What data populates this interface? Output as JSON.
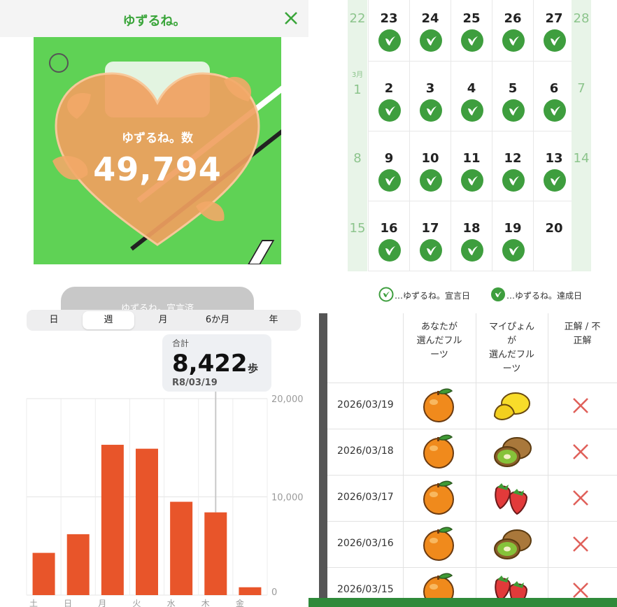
{
  "app": {
    "title": "ゆずるね。",
    "counter_label": "ゆずるね。数",
    "counter_value": "49,794",
    "declare_button": "ゆずるね。宣言済",
    "colors": {
      "brand_green": "#3aa53a",
      "heart": "#f0a060",
      "scene_green": "#5fd255"
    }
  },
  "calendar": {
    "month_label": "3月",
    "rows": [
      [
        "22",
        "23",
        "24",
        "25",
        "26",
        "27",
        "28"
      ],
      [
        "1",
        "2",
        "3",
        "4",
        "5",
        "6",
        "7"
      ],
      [
        "8",
        "9",
        "10",
        "11",
        "12",
        "13",
        "14"
      ],
      [
        "15",
        "16",
        "17",
        "18",
        "19",
        "20",
        ""
      ]
    ],
    "achieved": [
      [
        false,
        true,
        true,
        true,
        true,
        true,
        false
      ],
      [
        false,
        true,
        true,
        true,
        true,
        true,
        false
      ],
      [
        false,
        true,
        true,
        true,
        true,
        true,
        false
      ],
      [
        false,
        true,
        true,
        true,
        true,
        false,
        false
      ]
    ],
    "legend": {
      "declared": "…ゆずるね。宣言日",
      "achieved": "…ゆずるね。達成日"
    }
  },
  "steps": {
    "segments": [
      "日",
      "週",
      "月",
      "6か月",
      "年"
    ],
    "active_segment": "週",
    "tooltip": {
      "label": "合計",
      "value": "8,422",
      "unit": "歩",
      "date": "R8/03/19"
    }
  },
  "chart_data": {
    "type": "bar",
    "categories": [
      "土",
      "日",
      "月",
      "火",
      "水",
      "木",
      "金"
    ],
    "values": [
      4300,
      6200,
      15300,
      14900,
      9500,
      8422,
      800
    ],
    "y_ticks": [
      "20,000",
      "10,000",
      "0"
    ],
    "ylim": [
      0,
      20000
    ],
    "highlight_index": 5,
    "bar_color": "#e8552a",
    "grid": true
  },
  "fruit_table": {
    "headers": [
      "あなたが\n選んだフル\nーツ",
      "マイぴょん\nが\n選んだフル\nーツ",
      "正解 / 不\n正解"
    ],
    "rows": [
      {
        "date": "2026/03/19",
        "you": "orange",
        "mypyon": "lemon",
        "result": "incorrect"
      },
      {
        "date": "2026/03/18",
        "you": "orange",
        "mypyon": "kiwi",
        "result": "incorrect"
      },
      {
        "date": "2026/03/17",
        "you": "orange",
        "mypyon": "strawberry",
        "result": "incorrect"
      },
      {
        "date": "2026/03/16",
        "you": "orange",
        "mypyon": "kiwi",
        "result": "incorrect"
      },
      {
        "date": "2026/03/15",
        "you": "orange",
        "mypyon": "strawberry",
        "result": "incorrect"
      }
    ]
  }
}
